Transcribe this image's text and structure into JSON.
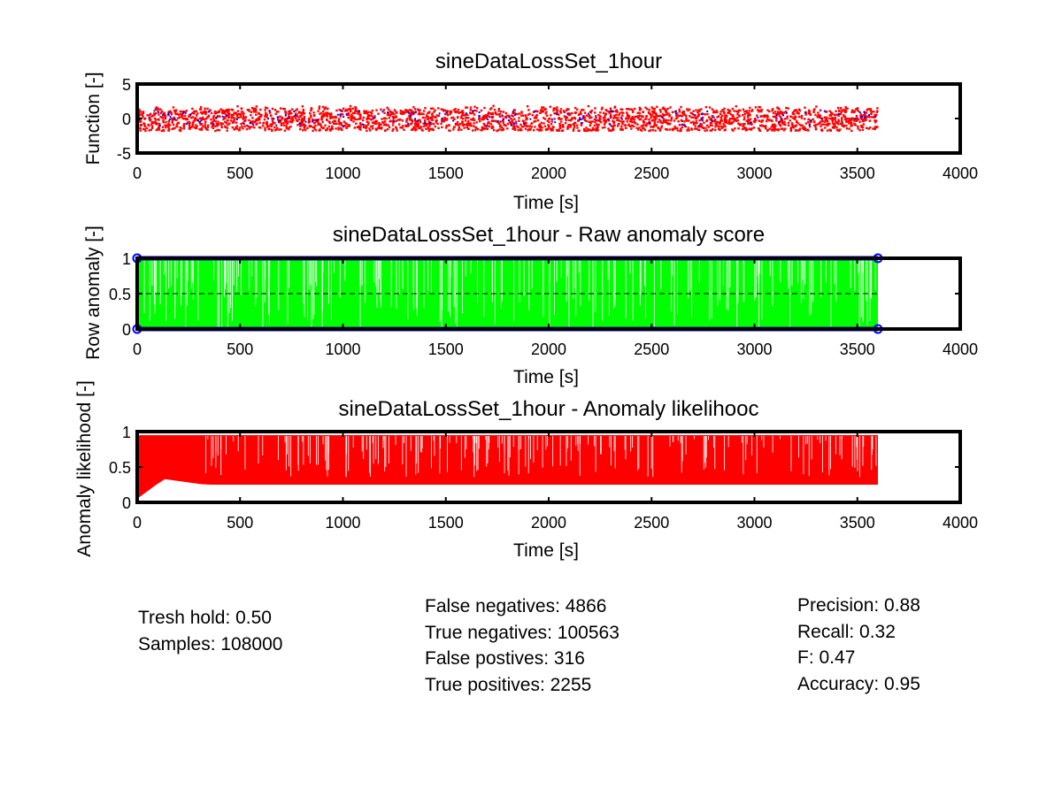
{
  "chart_data": [
    {
      "type": "scatter",
      "title": "sineDataLossSet_1hour",
      "xlabel": "Time [s]",
      "ylabel": "Function [-]",
      "xlim": [
        0,
        4000
      ],
      "ylim": [
        -5,
        5
      ],
      "xticks": [
        "0",
        "500",
        "1000",
        "1500",
        "2000",
        "2500",
        "3000",
        "3500",
        "4000"
      ],
      "yticks": [
        "-5",
        "0",
        "5"
      ],
      "grid": false,
      "data_extent": [
        0,
        3600
      ],
      "series": [
        {
          "role": "normal",
          "color": "#0000ff",
          "marker": "dot",
          "band": [
            -1.8,
            1.9
          ]
        },
        {
          "role": "flagged",
          "color": "#ff0000",
          "marker": "dot",
          "band": [
            -1.8,
            1.9
          ]
        }
      ]
    },
    {
      "type": "area",
      "title": "sineDataLossSet_1hour - Raw anomaly score",
      "xlabel": "Time [s]",
      "ylabel": "Row anomaly [-]",
      "xlim": [
        0,
        4000
      ],
      "ylim": [
        0,
        1
      ],
      "xticks": [
        "0",
        "500",
        "1000",
        "1500",
        "2000",
        "2500",
        "3000",
        "3500",
        "4000"
      ],
      "yticks": [
        "0",
        "0.5",
        "1"
      ],
      "grid": false,
      "data_extent": [
        0,
        3600
      ],
      "threshold": 0.5,
      "series": [
        {
          "role": "raw-score",
          "color": "#00ff00",
          "range": [
            0,
            1
          ]
        },
        {
          "role": "binary-marker",
          "color": "#0000ff",
          "values": [
            0,
            1
          ]
        }
      ]
    },
    {
      "type": "area",
      "title": "sineDataLossSet_1hour - Anomaly likelihooc",
      "xlabel": "Time [s]",
      "ylabel": "Anomaly likelihood [-]",
      "xlim": [
        0,
        4000
      ],
      "ylim": [
        0,
        1
      ],
      "xticks": [
        "0",
        "500",
        "1000",
        "1500",
        "2000",
        "2500",
        "3000",
        "3500",
        "4000"
      ],
      "yticks": [
        "0",
        "0.5",
        "1"
      ],
      "grid": false,
      "data_extent": [
        0,
        3600
      ],
      "series": [
        {
          "role": "likelihood",
          "color": "#ff0000",
          "floor": 0.25,
          "max": 0.95
        }
      ]
    }
  ],
  "stats": {
    "threshold_line": "Tresh hold: 0.50",
    "samples_line": "Samples: 108000",
    "false_negatives_line": "False negatives: 4866",
    "true_negatives_line": "True negatives: 100563",
    "false_positives_line": "False postives: 316",
    "true_positives_line": "True positives: 2255",
    "precision_line": "Precision: 0.88",
    "recall_line": "Recall: 0.32",
    "f_line": "F: 0.47",
    "accuracy_line": "Accuracy: 0.95"
  }
}
